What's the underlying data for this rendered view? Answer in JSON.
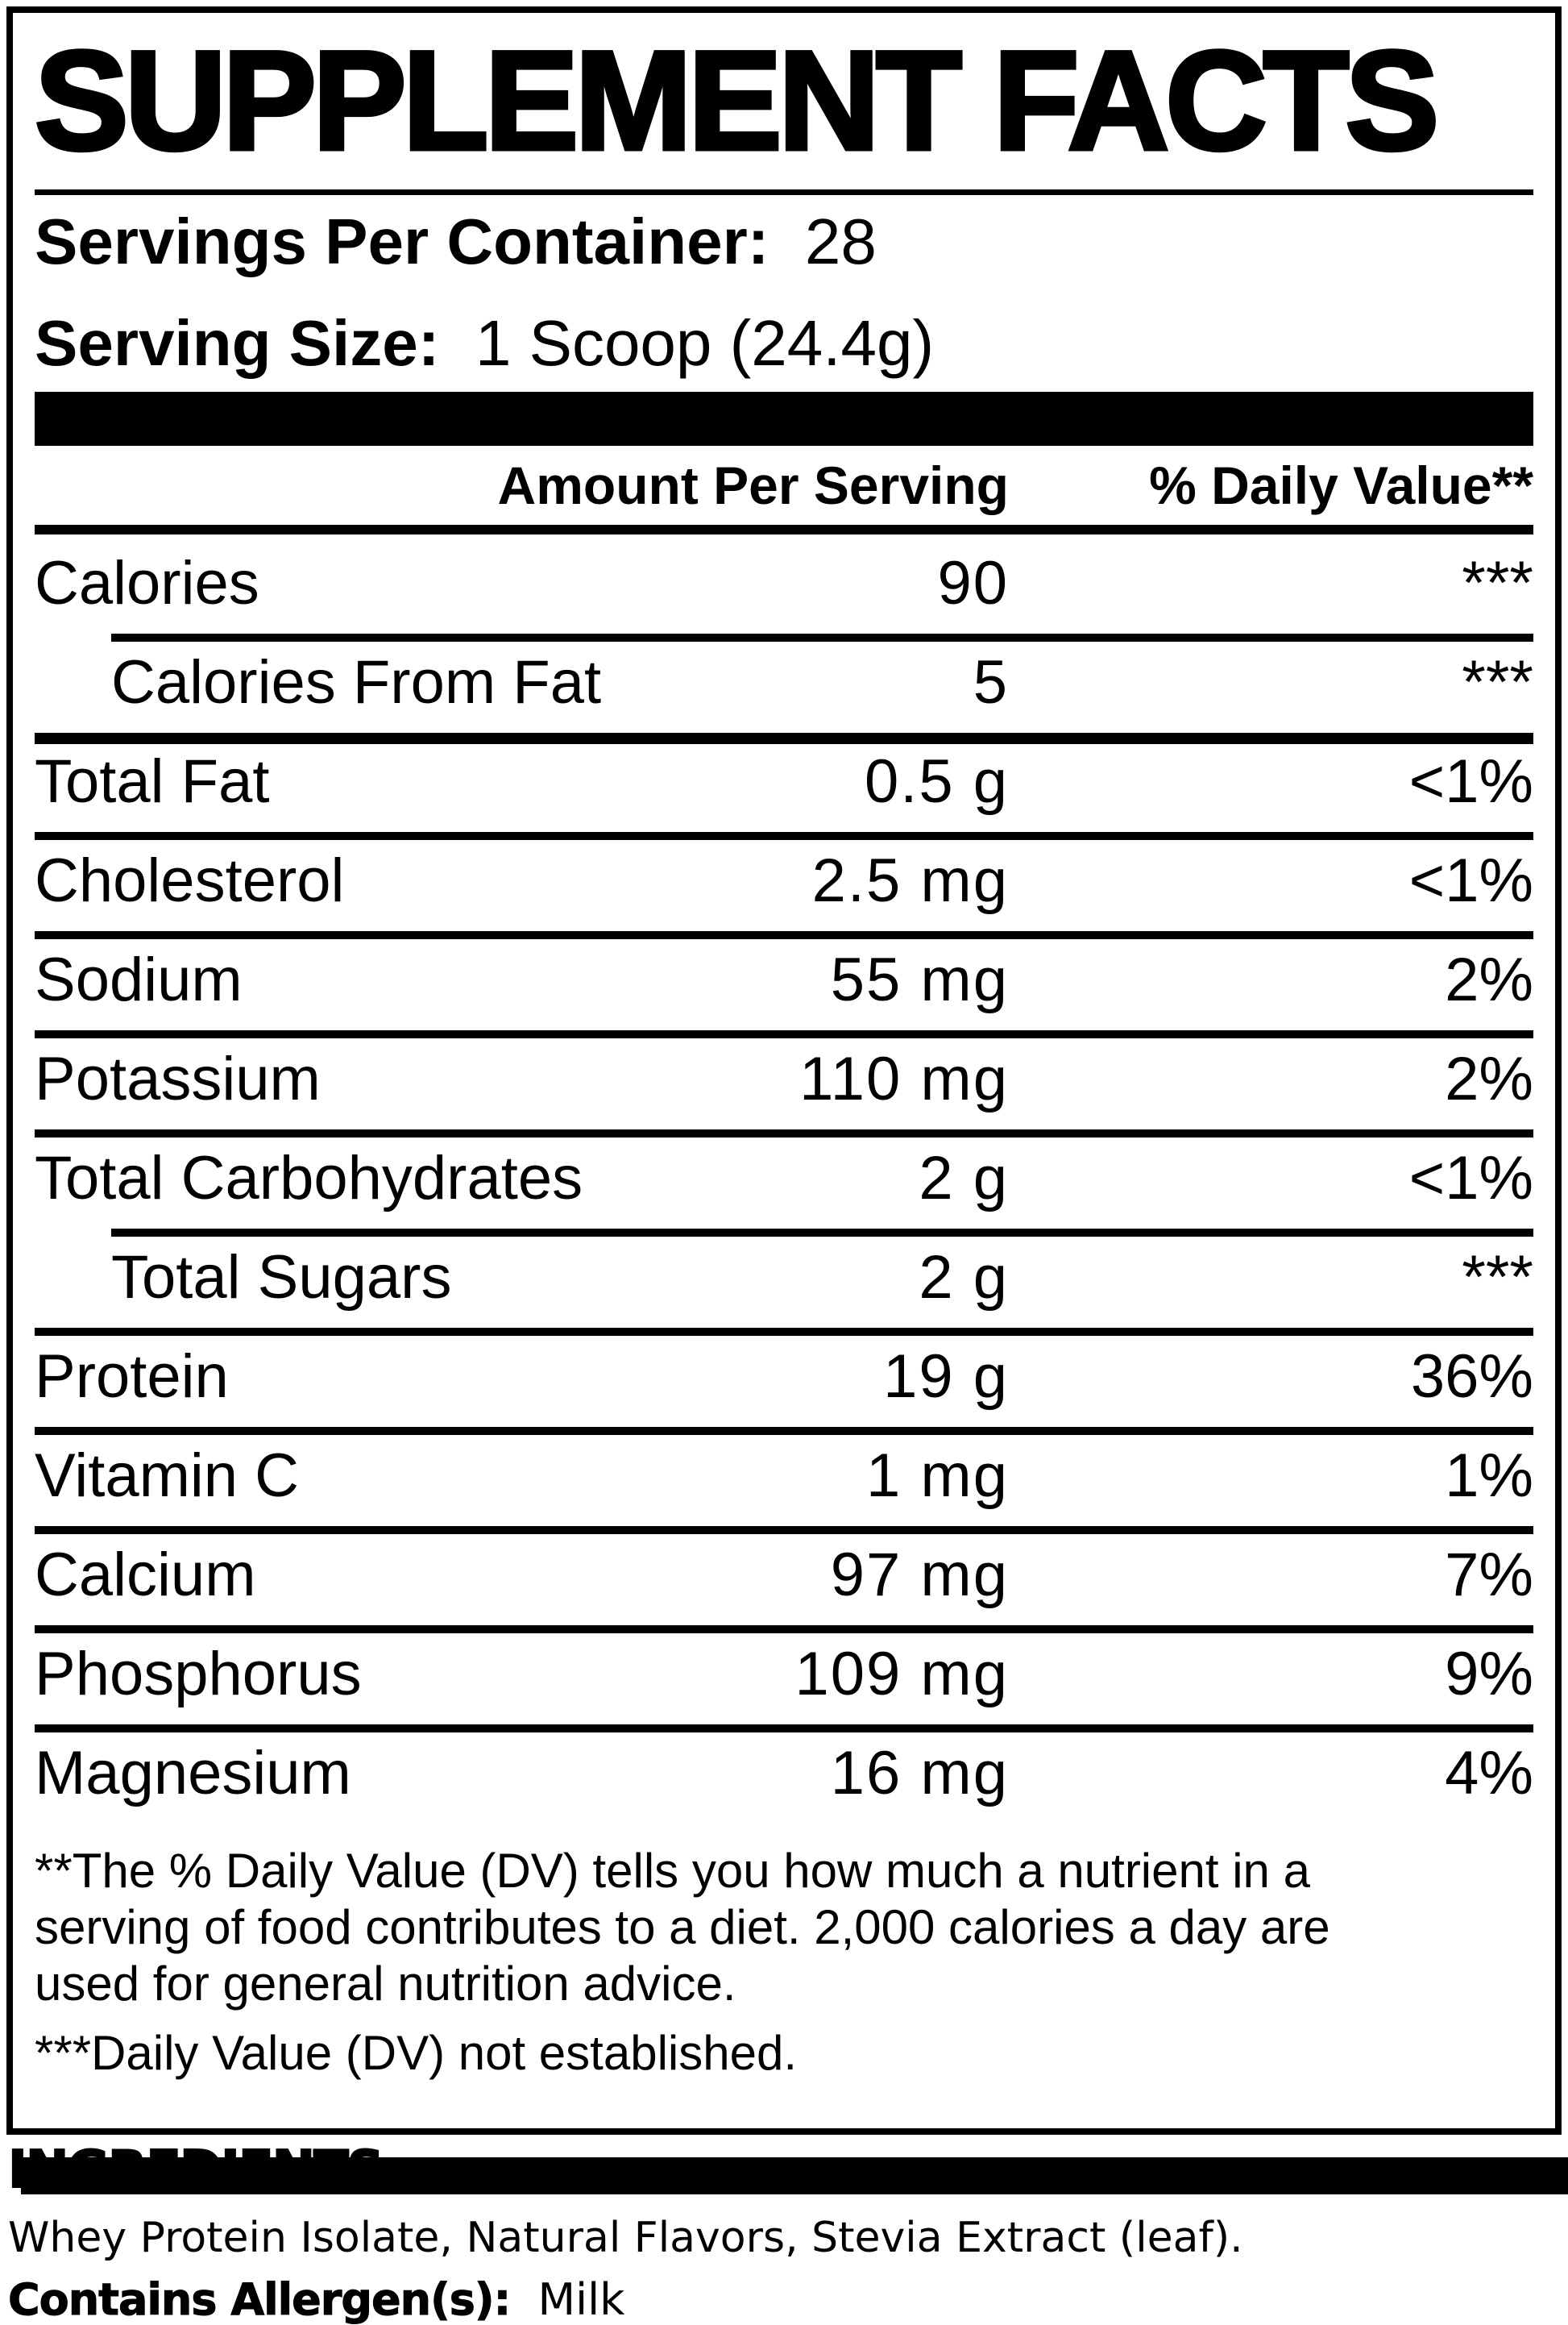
{
  "colors": {
    "ink": "#000000",
    "paper": "#ffffff"
  },
  "title": "SUPPLEMENT FACTS",
  "serving_info": {
    "servings_per_container_label": "Servings Per Container:",
    "servings_per_container_value": "28",
    "serving_size_label": "Serving Size:",
    "serving_size_value": "1 Scoop (24.4g)"
  },
  "table": {
    "amount_header": "Amount Per Serving",
    "dv_header": "% Daily Value**",
    "rows": [
      {
        "name": "Calories",
        "amount": "90",
        "dv": "***",
        "indent": false,
        "rule": "none"
      },
      {
        "name": "Calories From Fat",
        "amount": "5",
        "dv": "***",
        "indent": true,
        "rule": "thin"
      },
      {
        "name": "Total Fat",
        "amount": "0.5 g",
        "dv": "<1%",
        "indent": false,
        "rule": "heavy"
      },
      {
        "name": "Cholesterol",
        "amount": "2.5 mg",
        "dv": "<1%",
        "indent": false,
        "rule": "thin"
      },
      {
        "name": "Sodium",
        "amount": "55 mg",
        "dv": "2%",
        "indent": false,
        "rule": "thin"
      },
      {
        "name": "Potassium",
        "amount": "110 mg",
        "dv": "2%",
        "indent": false,
        "rule": "thin"
      },
      {
        "name": "Total Carbohydrates",
        "amount": "2 g",
        "dv": "<1%",
        "indent": false,
        "rule": "thin"
      },
      {
        "name": "Total Sugars",
        "amount": "2 g",
        "dv": "***",
        "indent": true,
        "rule": "thin"
      },
      {
        "name": "Protein",
        "amount": "19 g",
        "dv": "36%",
        "indent": false,
        "rule": "thin"
      },
      {
        "name": "Vitamin C",
        "amount": "1 mg",
        "dv": "1%",
        "indent": false,
        "rule": "thin"
      },
      {
        "name": "Calcium",
        "amount": "97 mg",
        "dv": "7%",
        "indent": false,
        "rule": "thin"
      },
      {
        "name": "Phosphorus",
        "amount": "109 mg",
        "dv": "9%",
        "indent": false,
        "rule": "thin"
      },
      {
        "name": "Magnesium",
        "amount": "16 mg",
        "dv": "4%",
        "indent": false,
        "rule": "thin"
      }
    ]
  },
  "footnotes": {
    "daily_value_note_lines": [
      "**The % Daily Value (DV) tells you how much a nutrient in a",
      "serving of food contributes to a diet. 2,000 calories a day are",
      "used for general nutrition advice."
    ],
    "not_established_note": "***Daily Value (DV) not established."
  },
  "ingredients_section": {
    "heading": "INGREDIENTS:",
    "list": "Whey Protein Isolate, Natural Flavors, Stevia Extract (leaf).",
    "allergen_label": "Contains Allergen(s):",
    "allergen_value": "Milk"
  }
}
